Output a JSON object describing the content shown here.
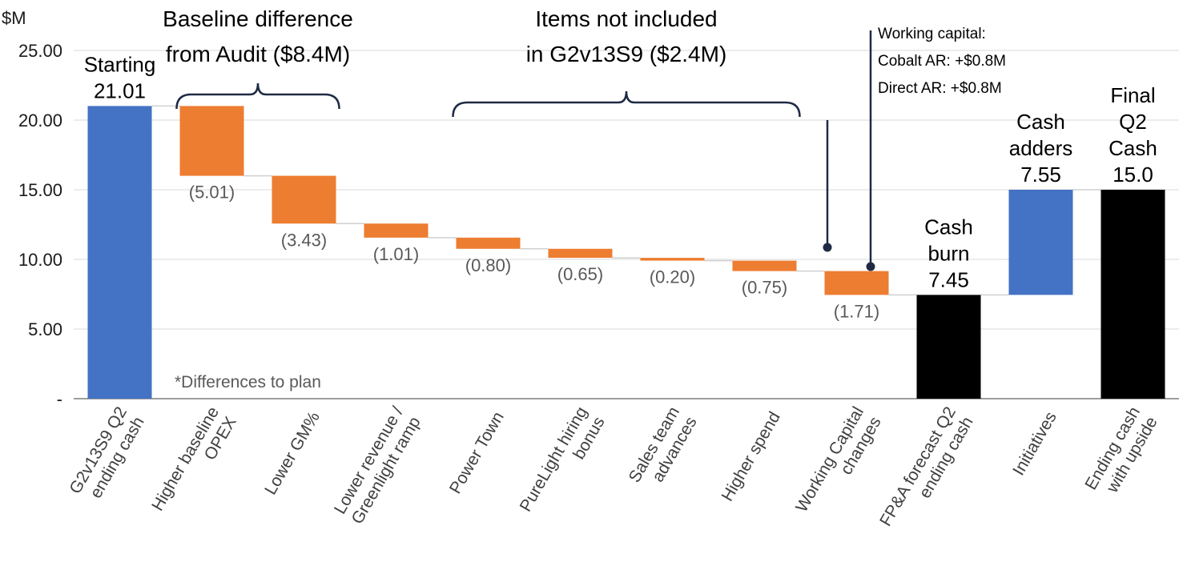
{
  "chart_data": {
    "type": "bar",
    "subtype": "waterfall",
    "ylabel": "$M",
    "ylim": [
      0,
      25
    ],
    "yticks": [
      "-",
      "5.00",
      "10.00",
      "15.00",
      "20.00",
      "25.00"
    ],
    "grid": true,
    "categories": [
      [
        "G2v13S9 Q2",
        "ending cash"
      ],
      [
        "Higher baseline",
        "OPEX"
      ],
      [
        "Lower GM%"
      ],
      [
        "Lower revenue /",
        "Greenlight ramp"
      ],
      [
        "Power Town"
      ],
      [
        "PureLight hiring",
        "bonus"
      ],
      [
        "Sales team",
        "advances"
      ],
      [
        "Higher spend"
      ],
      [
        "Working Capital",
        "changes"
      ],
      [
        "FP&A forecast Q2",
        "ending cash"
      ],
      [
        "Initiatives"
      ],
      [
        "Ending cash",
        "with upside"
      ]
    ],
    "bars": [
      {
        "start": 0,
        "end": 21.01,
        "color": "#4472c4",
        "label": [
          "Starting",
          "21.01"
        ],
        "label_style": "big"
      },
      {
        "start": 21.01,
        "end": 16.0,
        "color": "#ed7d31",
        "label": [
          "(5.01)"
        ],
        "label_style": "below"
      },
      {
        "start": 16.0,
        "end": 12.57,
        "color": "#ed7d31",
        "label": [
          "(3.43)"
        ],
        "label_style": "below"
      },
      {
        "start": 12.57,
        "end": 11.56,
        "color": "#ed7d31",
        "label": [
          "(1.01)"
        ],
        "label_style": "below"
      },
      {
        "start": 11.56,
        "end": 10.76,
        "color": "#ed7d31",
        "label": [
          "(0.80)"
        ],
        "label_style": "below"
      },
      {
        "start": 10.76,
        "end": 10.11,
        "color": "#ed7d31",
        "label": [
          "(0.65)"
        ],
        "label_style": "below"
      },
      {
        "start": 10.11,
        "end": 9.91,
        "color": "#ed7d31",
        "label": [
          "(0.20)"
        ],
        "label_style": "below"
      },
      {
        "start": 9.91,
        "end": 9.16,
        "color": "#ed7d31",
        "label": [
          "(0.75)"
        ],
        "label_style": "below"
      },
      {
        "start": 9.16,
        "end": 7.45,
        "color": "#ed7d31",
        "label": [
          "(1.71)"
        ],
        "label_style": "below"
      },
      {
        "start": 0,
        "end": 7.45,
        "color": "#000000",
        "label": [
          "Cash",
          "burn",
          "7.45"
        ],
        "label_style": "big"
      },
      {
        "start": 7.45,
        "end": 15.0,
        "color": "#4472c4",
        "label": [
          "Cash",
          "adders",
          "7.55"
        ],
        "label_style": "big"
      },
      {
        "start": 0,
        "end": 15.0,
        "color": "#000000",
        "label": [
          "Final",
          "Q2",
          "Cash",
          "15.0"
        ],
        "label_style": "big"
      }
    ],
    "groups": [
      {
        "from": 1,
        "to": 2,
        "label": [
          "Baseline difference",
          "from Audit ($8.4M)"
        ]
      },
      {
        "from": 4,
        "to": 7,
        "label": [
          "Items not included",
          "in G2v13S9 ($2.4M)"
        ]
      }
    ],
    "annotation": [
      "Working capital:",
      "Cobalt AR: +$0.8M",
      "Direct AR: +$0.8M"
    ],
    "footnote": "*Differences to plan"
  }
}
